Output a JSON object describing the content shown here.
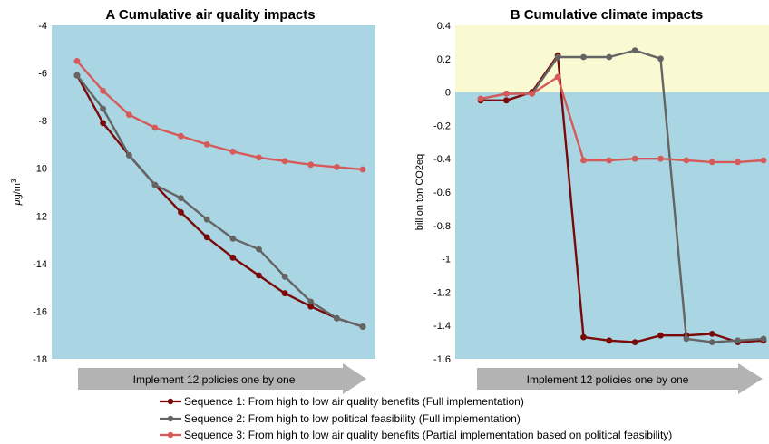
{
  "arrow_label": "Implement 12 policies one by one",
  "legend": [
    {
      "label": "Sequence 1: From high to low air quality benefits (Full implementation)",
      "color": "#7a0a0a"
    },
    {
      "label": "Sequence 2: From high to low political feasibility (Full implementation)",
      "color": "#646464"
    },
    {
      "label": "Sequence 3: From high to low air quality benefits (Partial implementation based on political feasibility)",
      "color": "#d65a5a"
    }
  ],
  "colors": {
    "plot_background": "#a9d6e2",
    "positive_band": "#fafad2",
    "arrow": "#b3b3b3"
  },
  "chart_data": [
    {
      "type": "line",
      "panel": "A",
      "title": "Cumulative air quality impacts",
      "ylabel": "μg/m³",
      "xlabel": "Implement 12 policies one by one",
      "ylim": [
        -18,
        -4
      ],
      "yticks": [
        "-4",
        "-6",
        "-8",
        "-10",
        "-12",
        "-14",
        "-16",
        "-18"
      ],
      "x": [
        1,
        2,
        3,
        4,
        5,
        6,
        7,
        8,
        9,
        10,
        11,
        12
      ],
      "series": [
        {
          "name": "Sequence 1: From high to low air quality benefits (Full implementation)",
          "color": "#7a0a0a",
          "values": [
            -6.1,
            -8.1,
            -9.45,
            -10.7,
            -11.85,
            -12.9,
            -13.75,
            -14.5,
            -15.25,
            -15.8,
            -16.3,
            -16.65
          ]
        },
        {
          "name": "Sequence 2: From high to low political feasibility (Full implementation)",
          "color": "#646464",
          "values": [
            -6.1,
            -7.5,
            -9.45,
            -10.7,
            -11.25,
            -12.15,
            -12.95,
            -13.4,
            -14.55,
            -15.6,
            -16.3,
            -16.65
          ]
        },
        {
          "name": "Sequence 3: From high to low air quality benefits (Partial implementation based on political feasibility)",
          "color": "#d65a5a",
          "values": [
            -5.5,
            -6.75,
            -7.75,
            -8.3,
            -8.65,
            -9.0,
            -9.3,
            -9.55,
            -9.7,
            -9.85,
            -9.95,
            -10.05
          ]
        }
      ]
    },
    {
      "type": "line",
      "panel": "B",
      "title": "Cumulative climate impacts",
      "ylabel": "billion ton CO2eq",
      "xlabel": "Implement 12 policies one by one",
      "ylim": [
        -1.6,
        0.4
      ],
      "yticks": [
        "0.4",
        "0.2",
        "0",
        "-0.2",
        "-0.4",
        "-0.6",
        "-0.8",
        "-1",
        "-1.2",
        "-1.4",
        "-1.6"
      ],
      "x": [
        1,
        2,
        3,
        4,
        5,
        6,
        7,
        8,
        9,
        10,
        11,
        12
      ],
      "series": [
        {
          "name": "Sequence 1: From high to low air quality benefits (Full implementation)",
          "color": "#7a0a0a",
          "values": [
            -0.05,
            -0.05,
            0.0,
            0.22,
            -1.47,
            -1.49,
            -1.5,
            -1.46,
            -1.46,
            -1.45,
            -1.5,
            -1.49
          ]
        },
        {
          "name": "Sequence 2: From high to low political feasibility (Full implementation)",
          "color": "#646464",
          "values": [
            -0.04,
            -0.01,
            -0.01,
            0.21,
            0.21,
            0.21,
            0.25,
            0.2,
            -1.48,
            -1.5,
            -1.49,
            -1.48
          ]
        },
        {
          "name": "Sequence 3: From high to low air quality benefits (Partial implementation based on political feasibility)",
          "color": "#d65a5a",
          "values": [
            -0.04,
            -0.01,
            -0.01,
            0.09,
            -0.41,
            -0.41,
            -0.4,
            -0.4,
            -0.41,
            -0.42,
            -0.42,
            -0.41
          ]
        }
      ]
    }
  ]
}
